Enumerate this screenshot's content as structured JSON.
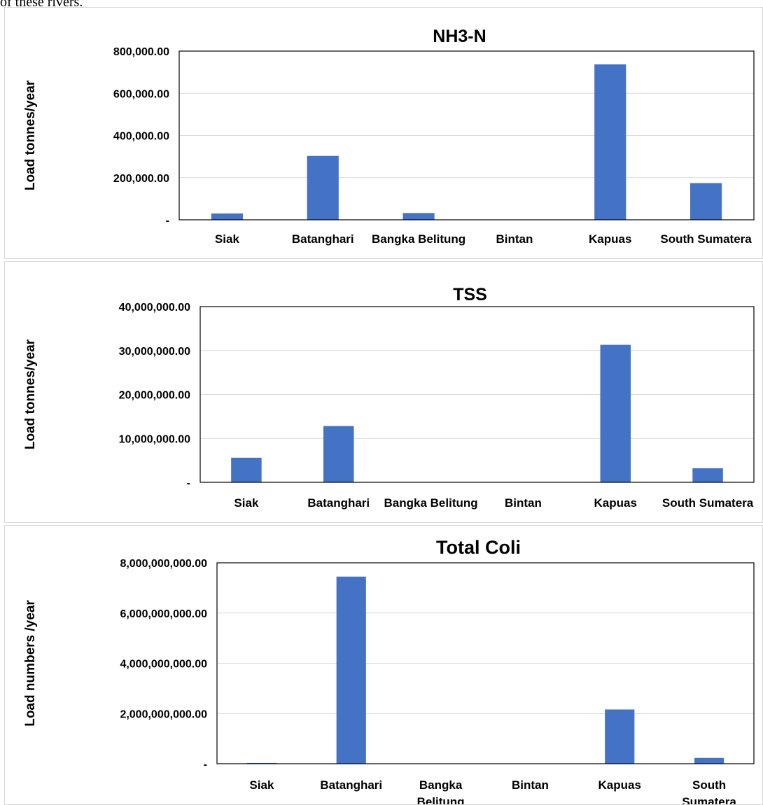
{
  "intro_text": "of these rivers.",
  "colors": {
    "bar": "#4472C4",
    "grid": "#d9d9d9",
    "frame": "#000000"
  },
  "chart_data": [
    {
      "type": "bar",
      "title": "NH3-N",
      "ylabel": "Load tonnes/year",
      "xlabel": "",
      "categories": [
        "Siak",
        "Batanghari",
        "Bangka Belitung",
        "Bintan",
        "Kapuas",
        "South Sumatera"
      ],
      "values": [
        30000,
        303000,
        32000,
        0,
        737000,
        174000
      ],
      "ylim": [
        0,
        800000
      ],
      "yticks": [
        0,
        200000,
        400000,
        600000,
        800000
      ],
      "ytick_labels": [
        "-",
        "200,000.00",
        "400,000.00",
        "600,000.00",
        "800,000.00"
      ],
      "grid": true
    },
    {
      "type": "bar",
      "title": "TSS",
      "ylabel": "Load tonnes/year",
      "xlabel": "",
      "categories": [
        "Siak",
        "Batanghari",
        "Bangka Belitung",
        "Bintan",
        "Kapuas",
        "South Sumatera"
      ],
      "values": [
        5600000,
        12800000,
        0,
        0,
        31300000,
        3200000
      ],
      "ylim": [
        0,
        40000000
      ],
      "yticks": [
        0,
        10000000,
        20000000,
        30000000,
        40000000
      ],
      "ytick_labels": [
        "-",
        "10,000,000.00",
        "20,000,000.00",
        "30,000,000.00",
        "40,000,000.00"
      ],
      "grid": true
    },
    {
      "type": "bar",
      "title": "Total Coli",
      "ylabel": "Load numbers /year",
      "xlabel": "",
      "categories": [
        "Siak",
        "Batanghari",
        "Bangka Belitung",
        "Bintan",
        "Kapuas",
        "South Sumatera"
      ],
      "values": [
        30000000,
        7450000000,
        0,
        0,
        2160000000,
        230000000
      ],
      "ylim": [
        0,
        8000000000
      ],
      "yticks": [
        0,
        2000000000,
        4000000000,
        6000000000,
        8000000000
      ],
      "ytick_labels": [
        "-",
        "2,000,000,000.00",
        "4,000,000,000.00",
        "6,000,000,000.00",
        "8,000,000,000.00"
      ],
      "grid": true
    }
  ]
}
